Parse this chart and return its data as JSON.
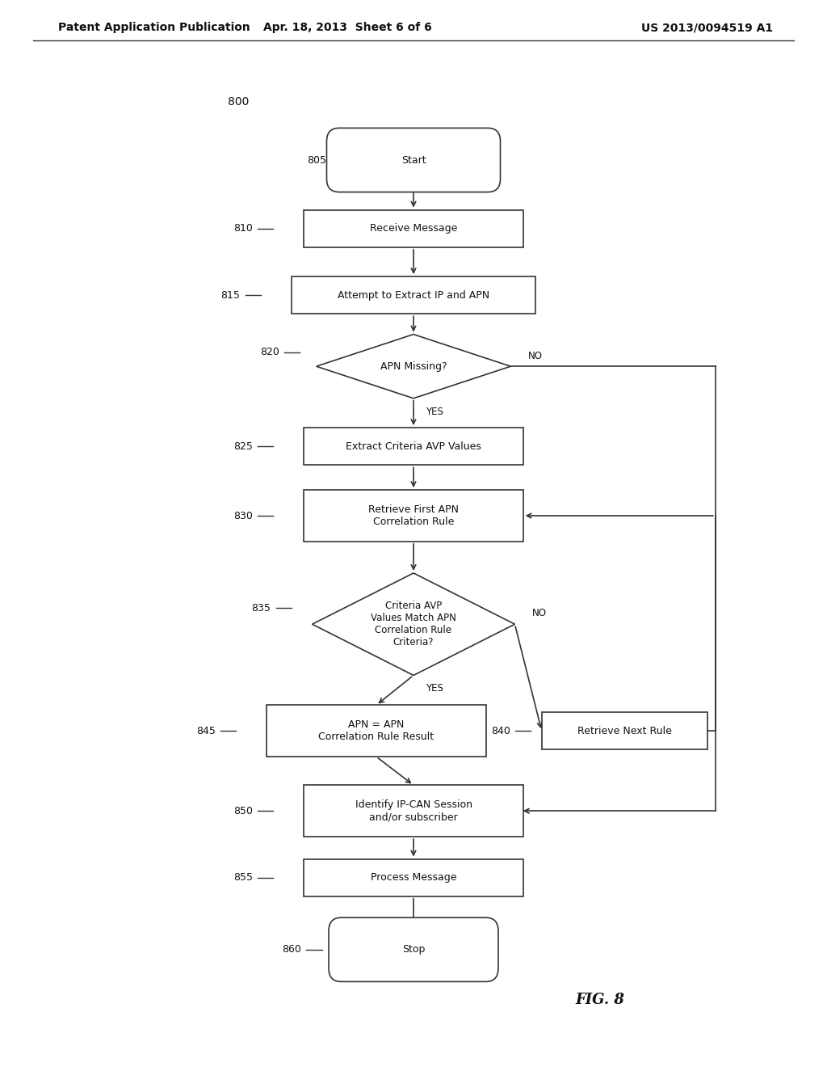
{
  "bg_color": "#ffffff",
  "header_left": "Patent Application Publication",
  "header_center": "Apr. 18, 2013  Sheet 6 of 6",
  "header_right": "US 2013/0094519 A1",
  "fig_label": "FIG. 8",
  "diagram_label": "800",
  "font_size_node": 9,
  "font_size_header": 10,
  "font_size_ref": 9,
  "font_size_fig": 13,
  "line_color": "#333333",
  "text_color": "#111111"
}
